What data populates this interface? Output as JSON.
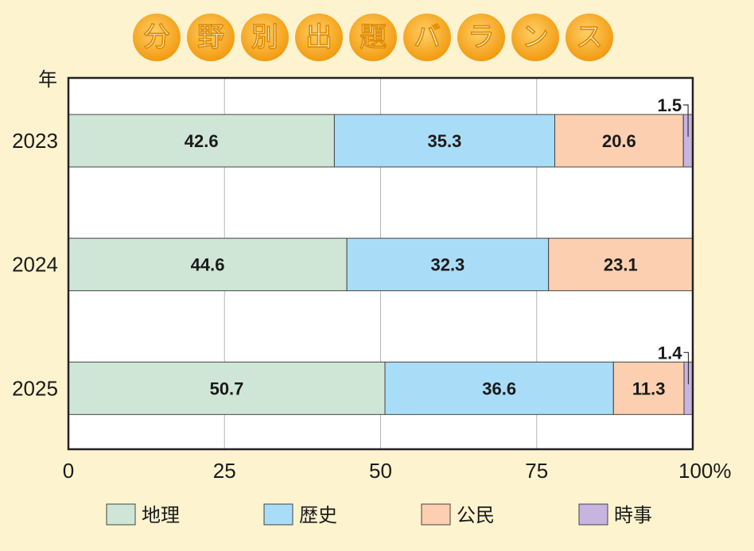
{
  "chart_data": {
    "type": "bar",
    "orientation": "horizontal",
    "stacked": true,
    "title": "分野別出題バランス",
    "ylabel": "年",
    "categories": [
      "2023",
      "2024",
      "2025"
    ],
    "series": [
      {
        "name": "地理",
        "values": [
          42.6,
          44.6,
          50.7
        ],
        "color": "#cfe6d6",
        "labels": [
          "42.6",
          "44.6",
          "50.7"
        ]
      },
      {
        "name": "歴史",
        "values": [
          35.3,
          32.3,
          36.6
        ],
        "color": "#a9ddf7",
        "labels": [
          "35.3",
          "32.3",
          "36.6"
        ]
      },
      {
        "name": "公民",
        "values": [
          20.6,
          23.1,
          11.3
        ],
        "color": "#fbcfb0",
        "labels": [
          "20.6",
          "23.1",
          "11.3"
        ]
      },
      {
        "name": "時事",
        "values": [
          1.5,
          0,
          1.4
        ],
        "color": "#c8b4e0",
        "labels": [
          "1.5",
          "",
          "1.4"
        ]
      }
    ],
    "xticks": [
      "0",
      "25",
      "50",
      "75",
      "100%"
    ],
    "xlim": [
      0,
      100
    ],
    "grid": true,
    "legend_position": "bottom",
    "title_color": "#f7a91e"
  }
}
